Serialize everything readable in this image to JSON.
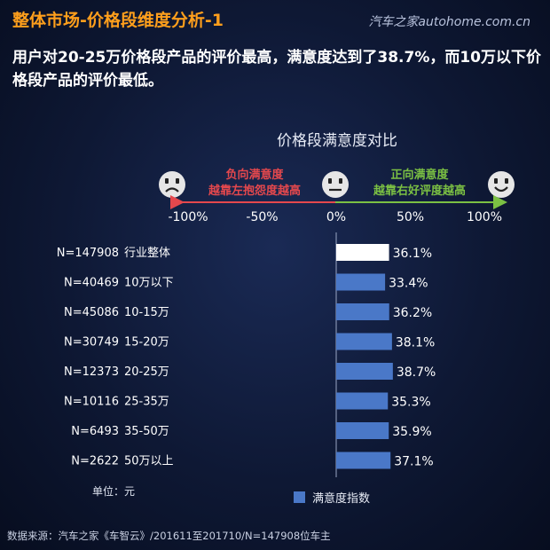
{
  "header": {
    "title": "整体市场-价格段维度分析-1",
    "watermark": "汽车之家autohome.com.cn",
    "headline": "用户对20-25万价格段产品的评价最高，满意度达到了38.7%，而10万以下价格段产品的评价最低。"
  },
  "footer": {
    "source": "数据来源：汽车之家《车智云》/201611至201710/N=147908位车主"
  },
  "chart_data": {
    "type": "bar",
    "orientation": "horizontal",
    "title": "价格段满意度对比",
    "scale": {
      "negative_label": [
        "负向满意度",
        "越靠左抱怨度越高"
      ],
      "positive_label": [
        "正向满意度",
        "越靠右好评度越高"
      ],
      "ticks": [
        "-100%",
        "-50%",
        "0%",
        "50%",
        "100%"
      ],
      "tick_values": [
        -100,
        -50,
        0,
        50,
        100
      ],
      "sad_icon": "sad-face-icon",
      "neutral_icon": "neutral-face-icon",
      "happy_icon": "happy-face-icon",
      "negative_color": "#e5484d",
      "positive_color": "#7bc043"
    },
    "xlim": [
      -100,
      100
    ],
    "unit_label": "单位：元",
    "legend": {
      "label": "满意度指数",
      "placement": "bottom"
    },
    "bar_color": "#4a78c8",
    "highlight_color": "#ffffff",
    "categories": [
      {
        "n": "N=147908",
        "label": "行业整体",
        "value": 36.1,
        "value_label": "36.1%",
        "highlight": true
      },
      {
        "n": "N=40469",
        "label": "10万以下",
        "value": 33.4,
        "value_label": "33.4%",
        "highlight": false
      },
      {
        "n": "N=45086",
        "label": "10-15万",
        "value": 36.2,
        "value_label": "36.2%",
        "highlight": false
      },
      {
        "n": "N=30749",
        "label": "15-20万",
        "value": 38.1,
        "value_label": "38.1%",
        "highlight": false
      },
      {
        "n": "N=12373",
        "label": "20-25万",
        "value": 38.7,
        "value_label": "38.7%",
        "highlight": false
      },
      {
        "n": "N=10116",
        "label": "25-35万",
        "value": 35.3,
        "value_label": "35.3%",
        "highlight": false
      },
      {
        "n": "N=6493",
        "label": "35-50万",
        "value": 35.9,
        "value_label": "35.9%",
        "highlight": false
      },
      {
        "n": "N=2622",
        "label": "50万以上",
        "value": 37.1,
        "value_label": "37.1%",
        "highlight": false
      }
    ]
  }
}
